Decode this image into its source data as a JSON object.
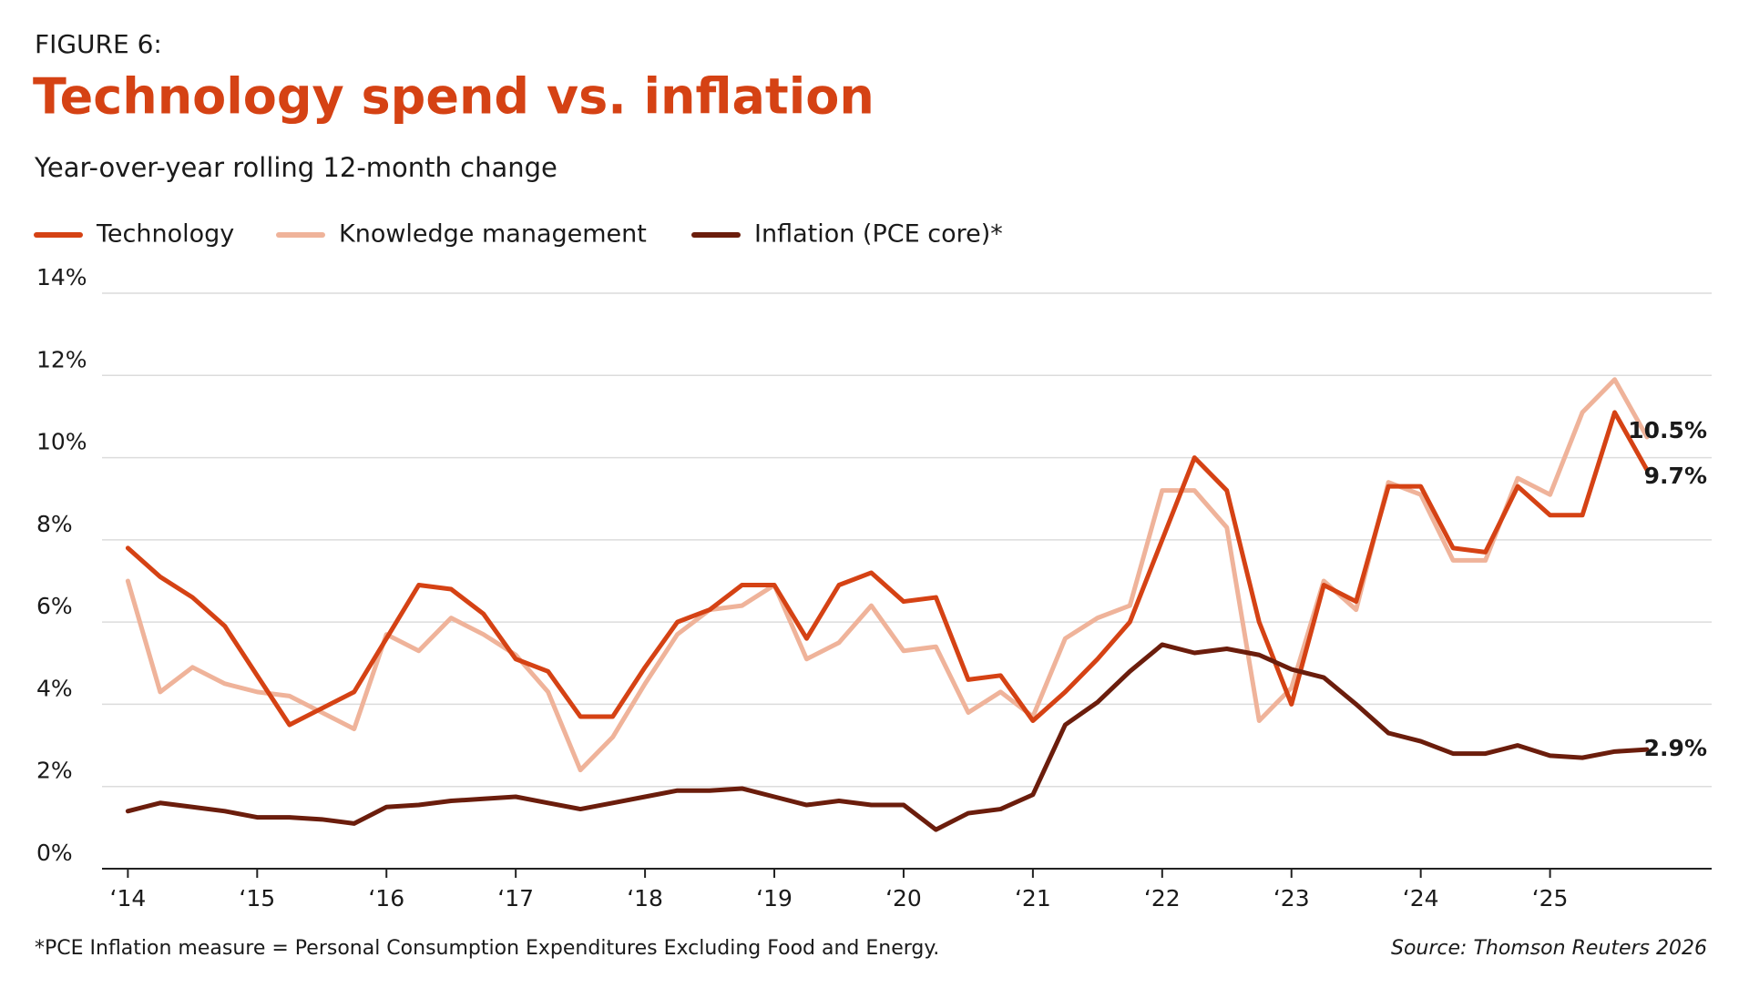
{
  "chart_data": {
    "type": "line",
    "kicker": "FIGURE 6:",
    "title": "Technology spend vs. inflation",
    "subtitle": "Year-over-year rolling 12-month change",
    "footnote": "*PCE Inflation measure = Personal Consumption Expenditures Excluding Food and Energy.",
    "source": "Source: Thomson Reuters 2026",
    "x": [
      2014,
      2014.25,
      2014.5,
      2014.75,
      2015,
      2015.25,
      2015.5,
      2015.75,
      2016,
      2016.25,
      2016.5,
      2016.75,
      2017,
      2017.25,
      2017.5,
      2017.75,
      2018,
      2018.25,
      2018.5,
      2018.75,
      2019,
      2019.25,
      2019.5,
      2019.75,
      2020,
      2020.25,
      2020.5,
      2020.75,
      2021,
      2021.25,
      2021.5,
      2021.75,
      2022,
      2022.25,
      2022.5,
      2022.75,
      2023,
      2023.25,
      2023.5,
      2023.75,
      2024,
      2024.25,
      2024.5,
      2024.75,
      2025,
      2025.25,
      2025.5,
      2025.75
    ],
    "series": [
      {
        "name": "Technology",
        "color": "#d54214",
        "end_label": "9.7%",
        "values": [
          7.8,
          7.1,
          6.6,
          5.9,
          4.7,
          3.5,
          3.9,
          4.3,
          5.6,
          6.9,
          6.8,
          6.2,
          5.1,
          4.8,
          3.7,
          3.7,
          4.9,
          6.0,
          6.3,
          6.9,
          6.9,
          5.6,
          6.9,
          7.2,
          6.5,
          6.6,
          4.6,
          4.7,
          3.6,
          4.3,
          5.1,
          6.0,
          8.0,
          10.0,
          9.2,
          6.0,
          4.0,
          6.9,
          6.5,
          9.3,
          9.3,
          7.8,
          7.7,
          9.3,
          8.6,
          8.6,
          11.1,
          9.7
        ]
      },
      {
        "name": "Knowledge management",
        "color": "#efb39a",
        "end_label": "10.5%",
        "values": [
          7.0,
          4.3,
          4.9,
          4.5,
          4.3,
          4.2,
          3.8,
          3.4,
          5.7,
          5.3,
          6.1,
          5.7,
          5.2,
          4.3,
          2.4,
          3.2,
          4.5,
          5.7,
          6.3,
          6.4,
          6.9,
          5.1,
          5.5,
          6.4,
          5.3,
          5.4,
          3.8,
          4.3,
          3.7,
          5.6,
          6.1,
          6.4,
          9.2,
          9.2,
          8.3,
          3.6,
          4.4,
          7.0,
          6.3,
          9.4,
          9.1,
          7.5,
          7.5,
          9.5,
          9.1,
          11.1,
          11.9,
          10.5
        ]
      },
      {
        "name": "Inflation (PCE core)*",
        "color": "#6b1d0c",
        "end_label": "2.9%",
        "values": [
          1.4,
          1.6,
          1.5,
          1.4,
          1.25,
          1.25,
          1.2,
          1.1,
          1.5,
          1.55,
          1.65,
          1.7,
          1.75,
          1.6,
          1.45,
          1.6,
          1.75,
          1.9,
          1.9,
          1.95,
          1.75,
          1.55,
          1.65,
          1.55,
          1.55,
          0.95,
          1.35,
          1.45,
          1.8,
          3.5,
          4.05,
          4.8,
          5.45,
          5.25,
          5.35,
          5.2,
          4.85,
          4.65,
          4.0,
          3.3,
          3.1,
          2.8,
          2.8,
          3.0,
          2.75,
          2.7,
          2.85,
          2.9
        ]
      }
    ],
    "xlim": [
      2013.8,
      2026.25
    ],
    "xticks": [
      {
        "value": 2014,
        "label": "‘14"
      },
      {
        "value": 2015,
        "label": "‘15"
      },
      {
        "value": 2016,
        "label": "‘16"
      },
      {
        "value": 2017,
        "label": "‘17"
      },
      {
        "value": 2018,
        "label": "‘18"
      },
      {
        "value": 2019,
        "label": "‘19"
      },
      {
        "value": 2020,
        "label": "‘20"
      },
      {
        "value": 2021,
        "label": "‘21"
      },
      {
        "value": 2022,
        "label": "‘22"
      },
      {
        "value": 2023,
        "label": "‘23"
      },
      {
        "value": 2024,
        "label": "‘24"
      },
      {
        "value": 2025,
        "label": "‘25"
      }
    ],
    "ylim": [
      0,
      14
    ],
    "yticks": [
      {
        "value": 0,
        "label": "0%"
      },
      {
        "value": 2,
        "label": "2%"
      },
      {
        "value": 4,
        "label": "4%"
      },
      {
        "value": 6,
        "label": "6%"
      },
      {
        "value": 8,
        "label": "8%"
      },
      {
        "value": 10,
        "label": "10%"
      },
      {
        "value": 12,
        "label": "12%"
      },
      {
        "value": 14,
        "label": "14%"
      }
    ],
    "grid": true
  }
}
